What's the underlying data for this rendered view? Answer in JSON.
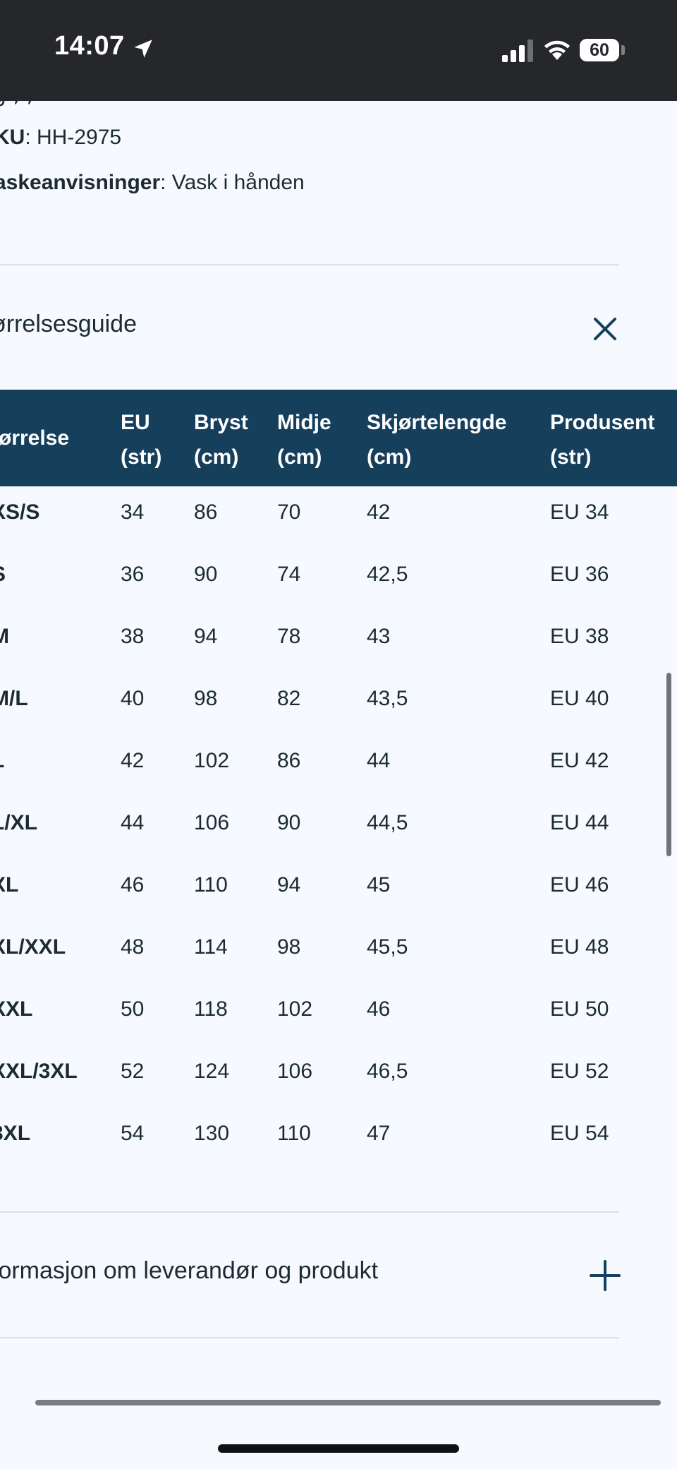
{
  "status_bar": {
    "time": "14:07",
    "battery": "60",
    "icons": [
      "location-arrow-icon",
      "cellular-signal-icon",
      "wifi-icon",
      "battery-icon"
    ]
  },
  "product_meta": {
    "cut_line": "g     ,  ,",
    "sku_label": "KU",
    "sku_value": ": HH-2975",
    "wash_label": "askeanvisninger",
    "wash_value": ": Vask i hånden"
  },
  "size_guide": {
    "title": "ørrelsesguide",
    "close_icon": "close-icon",
    "columns": [
      [
        "tørrelse"
      ],
      [
        "EU",
        "(str)"
      ],
      [
        "Bryst",
        "(cm)"
      ],
      [
        "Midje",
        "(cm)"
      ],
      [
        "Skjørtelengde",
        "(cm)"
      ],
      [
        "Produsent",
        "(str)"
      ]
    ],
    "rows": [
      [
        "XS/S",
        "34",
        "86",
        "70",
        "42",
        "EU 34"
      ],
      [
        "S",
        "36",
        "90",
        "74",
        "42,5",
        "EU 36"
      ],
      [
        "M",
        "38",
        "94",
        "78",
        "43",
        "EU 38"
      ],
      [
        "M/L",
        "40",
        "98",
        "82",
        "43,5",
        "EU 40"
      ],
      [
        "L",
        "42",
        "102",
        "86",
        "44",
        "EU 42"
      ],
      [
        "L/XL",
        "44",
        "106",
        "90",
        "44,5",
        "EU 44"
      ],
      [
        "XL",
        "46",
        "110",
        "94",
        "45",
        "EU 46"
      ],
      [
        "XL/XXL",
        "48",
        "114",
        "98",
        "45,5",
        "EU 48"
      ],
      [
        "XXL",
        "50",
        "118",
        "102",
        "46",
        "EU 50"
      ],
      [
        "XXL/3XL",
        "52",
        "124",
        "106",
        "46,5",
        "EU 52"
      ],
      [
        "3XL",
        "54",
        "130",
        "110",
        "47",
        "EU 54"
      ]
    ]
  },
  "supplier_section": {
    "title": "formasjon om leverandør og produkt",
    "expand_icon": "plus-icon"
  },
  "colors": {
    "status_bar_bg": "#25272b",
    "table_header_bg": "#163f5c",
    "page_bg": "#f6f9fd",
    "icon_accent": "#163f5c"
  }
}
